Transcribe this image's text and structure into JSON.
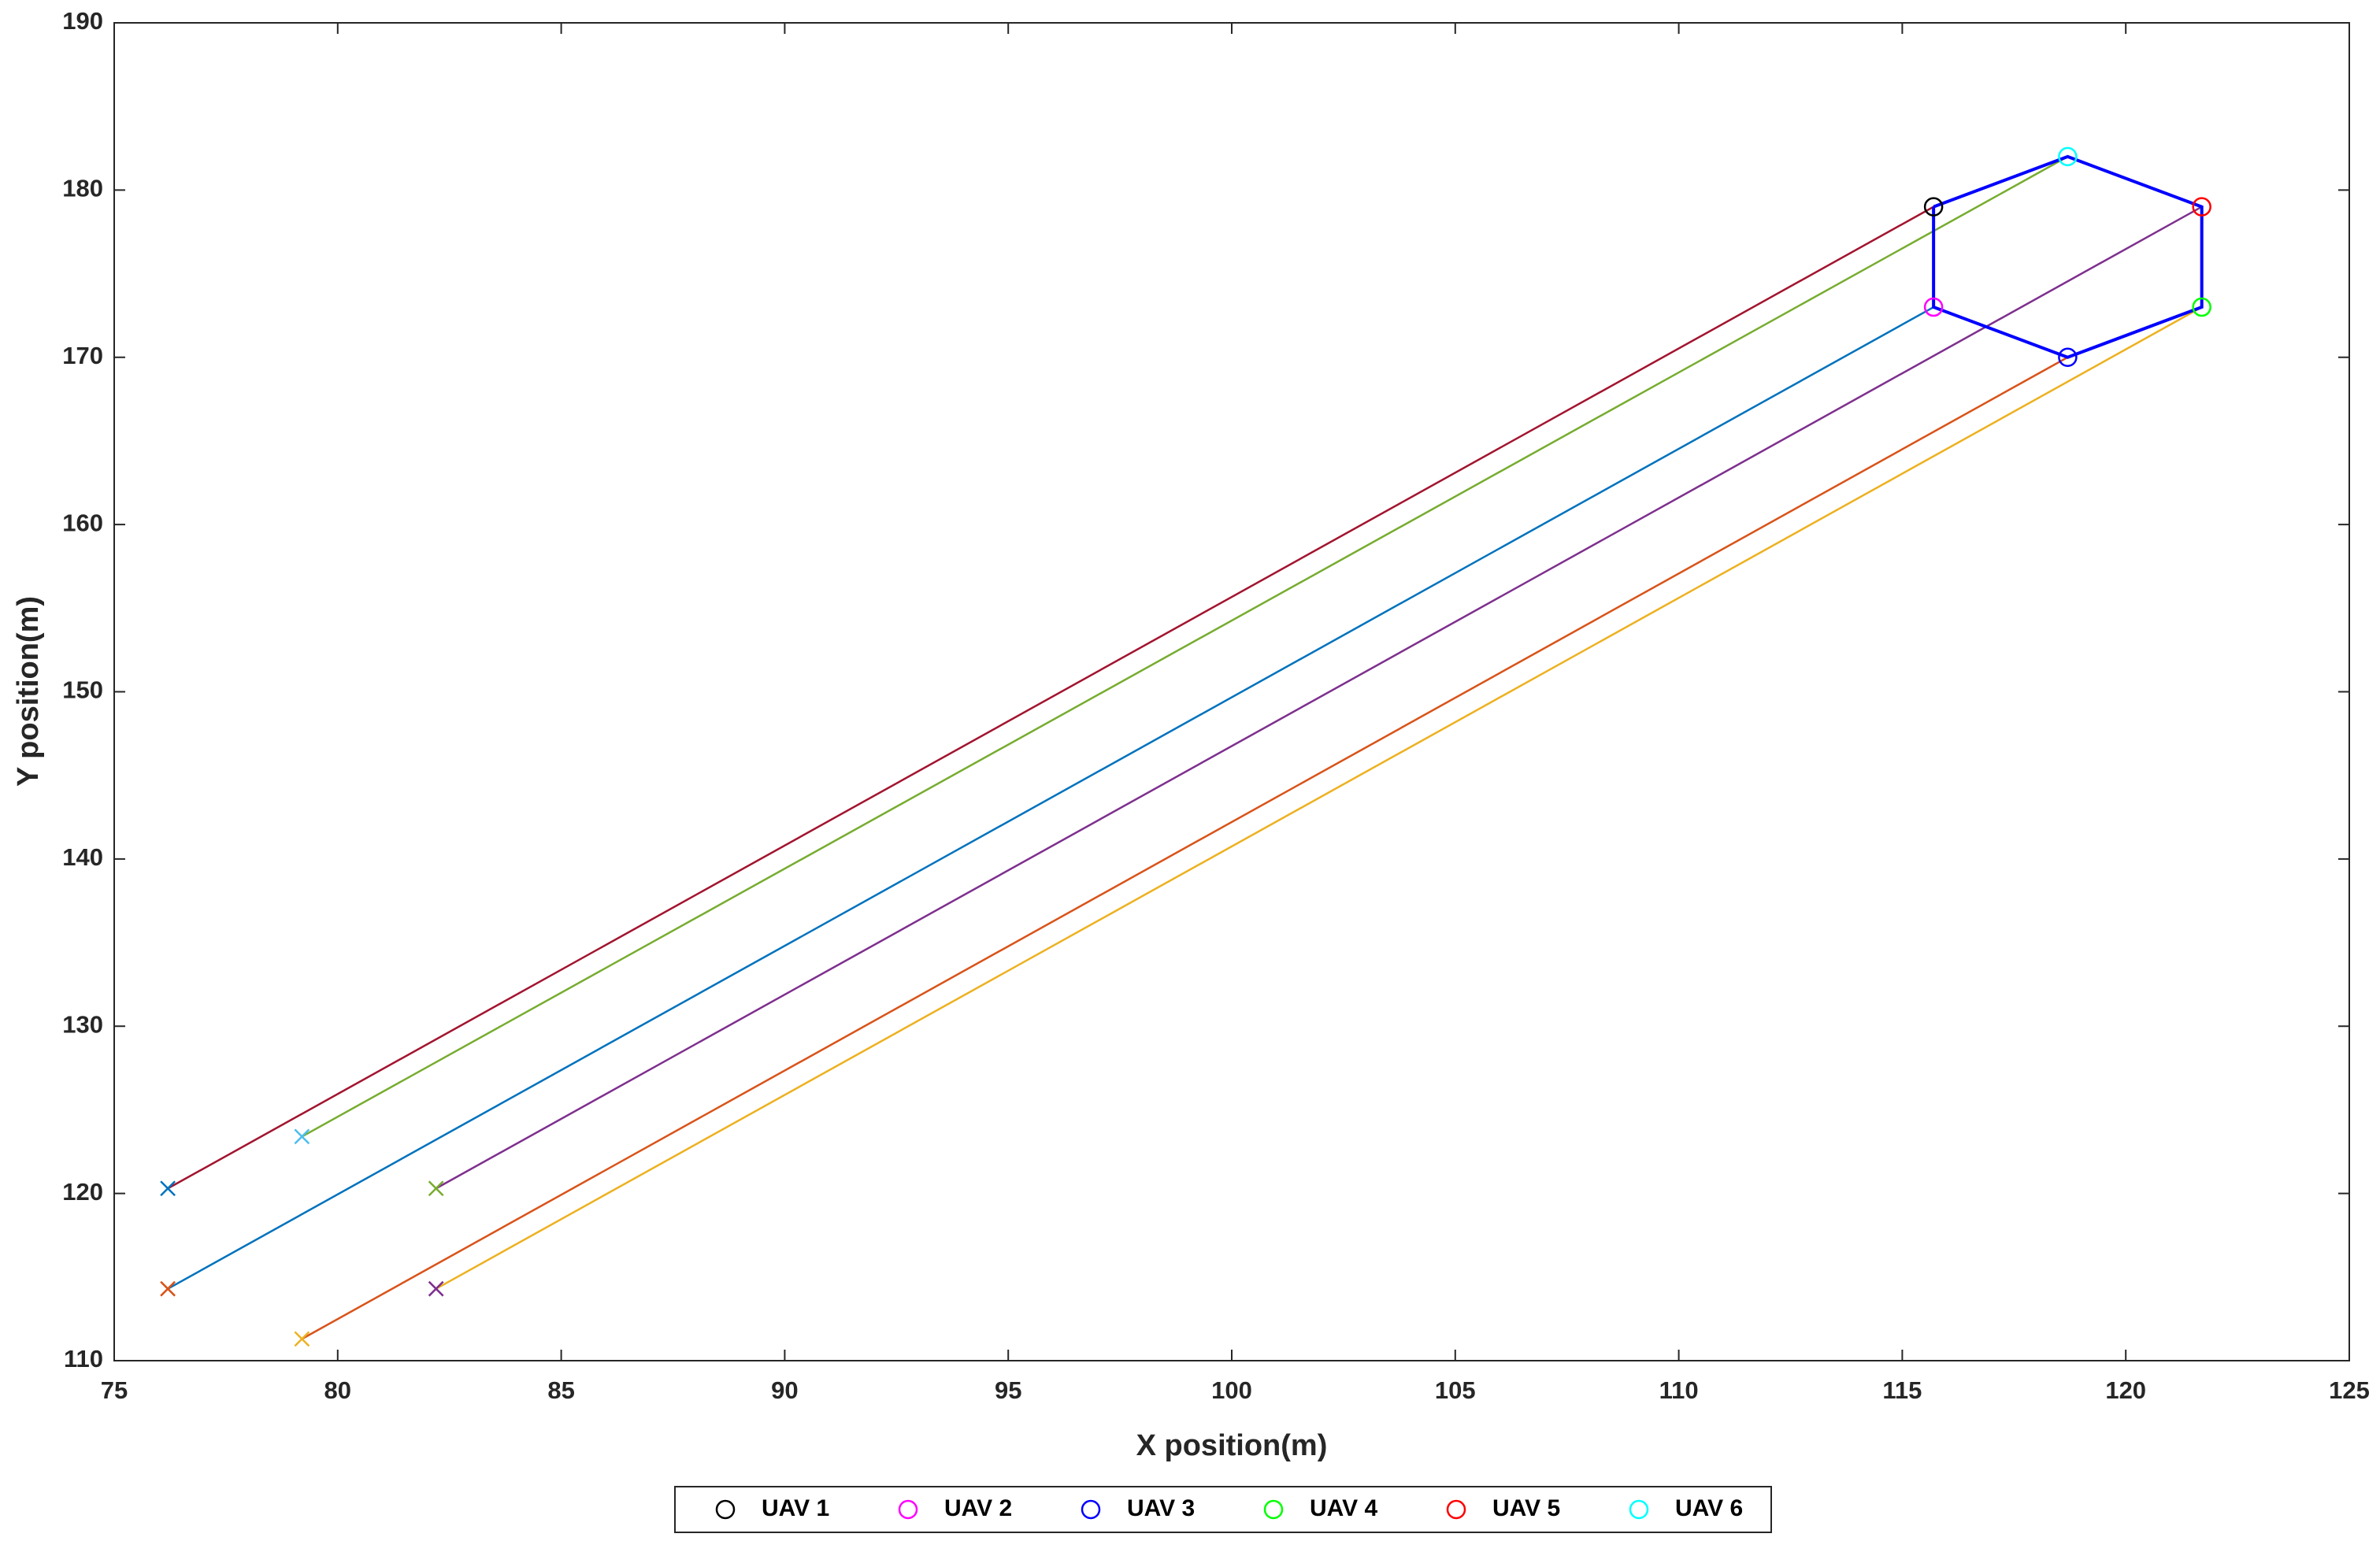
{
  "chart_data": {
    "type": "trajectory",
    "xlabel": "X position(m)",
    "ylabel": "Y position(m)",
    "xlim": [
      75,
      125
    ],
    "xticks": [
      75,
      80,
      85,
      90,
      95,
      100,
      105,
      110,
      115,
      120,
      125
    ],
    "ylim": [
      110,
      190
    ],
    "yticks": [
      110,
      120,
      130,
      140,
      150,
      160,
      170,
      180,
      190
    ],
    "series": [
      {
        "name": "UAV 1",
        "color": "#000000",
        "line_color": "#A2142F",
        "start_color": "#0072BD",
        "x": [
          76.2,
          115.7
        ],
        "y": [
          120.3,
          179
        ]
      },
      {
        "name": "UAV 2",
        "color": "#FF00FF",
        "line_color": "#0072BD",
        "start_color": "#D95319",
        "x": [
          76.2,
          115.7
        ],
        "y": [
          114.3,
          173
        ]
      },
      {
        "name": "UAV 3",
        "color": "#0000FF",
        "line_color": "#D95319",
        "start_color": "#EDB120",
        "x": [
          79.2,
          118.7
        ],
        "y": [
          111.3,
          170
        ]
      },
      {
        "name": "UAV 4",
        "color": "#00FF00",
        "line_color": "#EDB120",
        "start_color": "#7E2F8E",
        "x": [
          82.2,
          121.7
        ],
        "y": [
          114.3,
          173
        ]
      },
      {
        "name": "UAV 5",
        "color": "#FF0000",
        "line_color": "#7E2F8E",
        "start_color": "#77AC30",
        "x": [
          82.2,
          121.7
        ],
        "y": [
          120.3,
          179
        ]
      },
      {
        "name": "UAV 6",
        "color": "#00FFFF",
        "line_color": "#77AC30",
        "start_color": "#4DBEEE",
        "x": [
          79.2,
          118.7
        ],
        "y": [
          123.4,
          182
        ]
      }
    ],
    "formation": {
      "color": "#0000FF",
      "x": [
        115.7,
        118.7,
        121.7,
        121.7,
        118.7,
        115.7,
        115.7
      ],
      "y": [
        179,
        182,
        179,
        173,
        170,
        173,
        179
      ]
    }
  }
}
